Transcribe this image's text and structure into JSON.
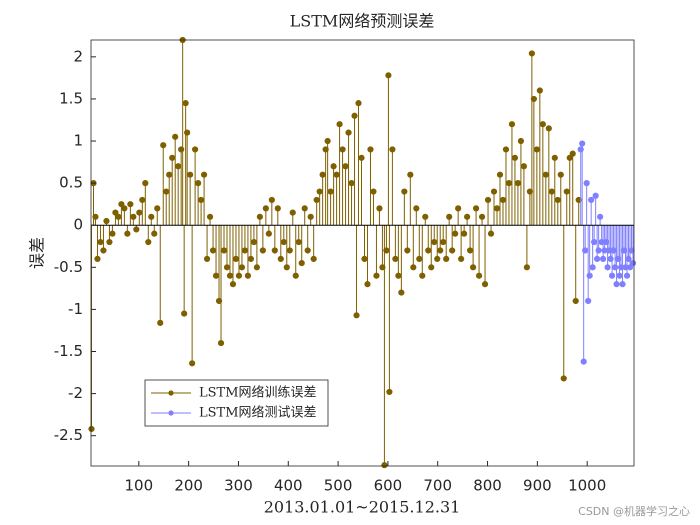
{
  "chart_data": {
    "type": "stem",
    "title": "LSTM网络预测误差",
    "x_label": "2013.01.01~2015.12.31",
    "y_label": "误差",
    "xlim": [
      4,
      1094
    ],
    "ylim": [
      -2.86,
      2.2
    ],
    "xticks": [
      100,
      200,
      300,
      400,
      500,
      600,
      700,
      800,
      900,
      1000
    ],
    "yticks": [
      -2.5,
      -2,
      -1.5,
      -1,
      -0.5,
      0,
      0.5,
      1,
      1.5,
      2
    ],
    "legend_position": "lower left",
    "watermark": "CSDN @机器学习之心",
    "series": [
      {
        "name": "LSTM网络训练误差",
        "color": "#7f6000",
        "x": [
          5,
          9,
          13,
          17,
          23,
          29,
          35,
          41,
          47,
          53,
          59,
          65,
          71,
          77,
          83,
          89,
          95,
          101,
          107,
          113,
          119,
          125,
          131,
          137,
          143,
          149,
          155,
          161,
          167,
          173,
          179,
          185,
          188,
          191,
          194,
          197,
          203,
          207,
          213,
          219,
          225,
          231,
          237,
          243,
          249,
          255,
          261,
          265,
          271,
          277,
          283,
          289,
          295,
          301,
          307,
          313,
          319,
          325,
          331,
          337,
          343,
          349,
          355,
          361,
          367,
          373,
          379,
          385,
          391,
          397,
          403,
          409,
          415,
          421,
          427,
          433,
          439,
          445,
          451,
          457,
          463,
          469,
          475,
          479,
          485,
          491,
          497,
          503,
          509,
          515,
          521,
          527,
          533,
          537,
          541,
          547,
          553,
          559,
          565,
          571,
          577,
          583,
          589,
          593,
          597,
          601,
          603,
          609,
          615,
          621,
          627,
          633,
          639,
          645,
          651,
          657,
          663,
          669,
          675,
          681,
          687,
          693,
          699,
          705,
          711,
          717,
          723,
          729,
          735,
          741,
          747,
          753,
          759,
          765,
          771,
          777,
          783,
          789,
          795,
          801,
          807,
          813,
          819,
          825,
          831,
          837,
          843,
          849,
          855,
          861,
          867,
          873,
          879,
          885,
          889,
          893,
          899,
          905,
          911,
          917,
          923,
          929,
          935,
          941,
          947,
          953,
          959,
          965,
          971,
          977,
          983
        ],
        "values": [
          -2.42,
          0.5,
          0.1,
          -0.4,
          -0.2,
          -0.3,
          0.05,
          -0.2,
          -0.1,
          0.15,
          0.1,
          0.25,
          0.2,
          -0.1,
          0.25,
          0.1,
          -0.05,
          0.15,
          0.3,
          0.5,
          -0.2,
          0.1,
          -0.1,
          0.2,
          -1.16,
          0.95,
          0.4,
          0.6,
          0.8,
          1.05,
          0.7,
          0.9,
          2.2,
          -1.05,
          1.45,
          1.1,
          0.6,
          -1.64,
          0.9,
          0.5,
          0.3,
          0.6,
          -0.4,
          0.1,
          -0.3,
          -0.6,
          -0.9,
          -1.4,
          -0.3,
          -0.5,
          -0.6,
          -0.7,
          -0.4,
          -0.6,
          -0.5,
          -0.3,
          -0.6,
          -0.4,
          -0.2,
          -0.5,
          0.1,
          -0.3,
          0.2,
          -0.1,
          0.3,
          -0.3,
          0.2,
          -0.4,
          -0.2,
          -0.5,
          -0.3,
          0.15,
          -0.6,
          -0.2,
          -0.45,
          0.2,
          -0.3,
          0.1,
          -0.4,
          0.3,
          0.4,
          0.6,
          0.9,
          1.0,
          0.4,
          0.7,
          0.6,
          1.2,
          0.9,
          0.7,
          1.1,
          0.5,
          1.3,
          -1.07,
          1.45,
          0.8,
          -0.4,
          -0.7,
          0.9,
          0.4,
          -0.6,
          0.2,
          -0.5,
          -2.85,
          -0.3,
          1.78,
          -1.98,
          0.9,
          -0.4,
          -0.6,
          -0.8,
          0.4,
          -0.3,
          0.6,
          -0.5,
          0.2,
          -0.4,
          -0.6,
          0.1,
          -0.3,
          -0.5,
          -0.2,
          -0.4,
          -0.3,
          -0.2,
          -0.4,
          0.1,
          -0.3,
          -0.1,
          0.2,
          -0.4,
          -0.1,
          0.1,
          -0.3,
          -0.5,
          0.2,
          -0.6,
          0.1,
          -0.7,
          0.3,
          -0.1,
          0.4,
          0.2,
          0.6,
          0.3,
          0.9,
          0.5,
          1.2,
          0.8,
          0.5,
          1.0,
          0.7,
          -0.5,
          0.4,
          2.04,
          1.5,
          0.9,
          1.6,
          1.2,
          0.6,
          1.15,
          0.4,
          0.8,
          0.3,
          0.6,
          -1.82,
          0.4,
          0.8,
          0.85,
          -0.9,
          0.3
        ]
      },
      {
        "name": "LSTM网络测试误差",
        "color": "#7f7fff",
        "x": [
          987,
          990,
          993,
          996,
          999,
          1002,
          1005,
          1008,
          1011,
          1014,
          1017,
          1020,
          1023,
          1026,
          1029,
          1032,
          1035,
          1038,
          1041,
          1044,
          1047,
          1050,
          1053,
          1056,
          1059,
          1062,
          1065,
          1068,
          1071,
          1074,
          1077,
          1080,
          1083,
          1086,
          1089,
          1092
        ],
        "values": [
          0.9,
          0.97,
          -1.62,
          -0.3,
          0.5,
          -0.9,
          -0.6,
          0.3,
          -0.5,
          -0.2,
          0.35,
          -0.4,
          -0.3,
          0.1,
          -0.2,
          -0.4,
          -0.3,
          -0.2,
          -0.5,
          -0.3,
          -0.4,
          -0.6,
          -0.3,
          -0.5,
          -0.7,
          -0.4,
          -0.6,
          -0.5,
          -0.7,
          -0.3,
          -0.5,
          -0.6,
          -0.4,
          -0.5,
          -0.3,
          -0.45
        ]
      }
    ]
  }
}
